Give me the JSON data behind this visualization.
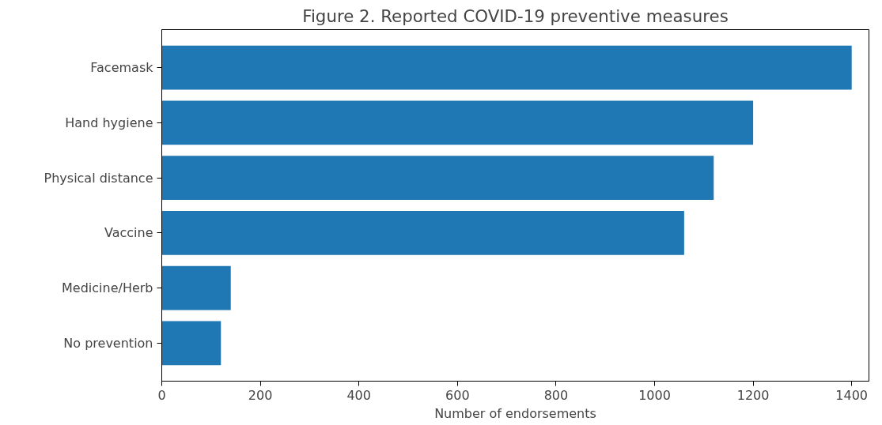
{
  "chart_data": {
    "type": "bar",
    "orientation": "horizontal",
    "title": "Figure 2. Reported COVID-19 preventive measures",
    "xlabel": "Number of endorsements",
    "categories": [
      "Facemask",
      "Hand hygiene",
      "Physical distance",
      "Vaccine",
      "Medicine/Herb",
      "No prevention"
    ],
    "values": [
      1400,
      1200,
      1120,
      1060,
      140,
      120
    ],
    "color": "#1f77b4",
    "xlim": [
      0,
      1435
    ],
    "xticks": [
      0,
      200,
      400,
      600,
      800,
      1000,
      1200,
      1400
    ],
    "grid": false
  }
}
